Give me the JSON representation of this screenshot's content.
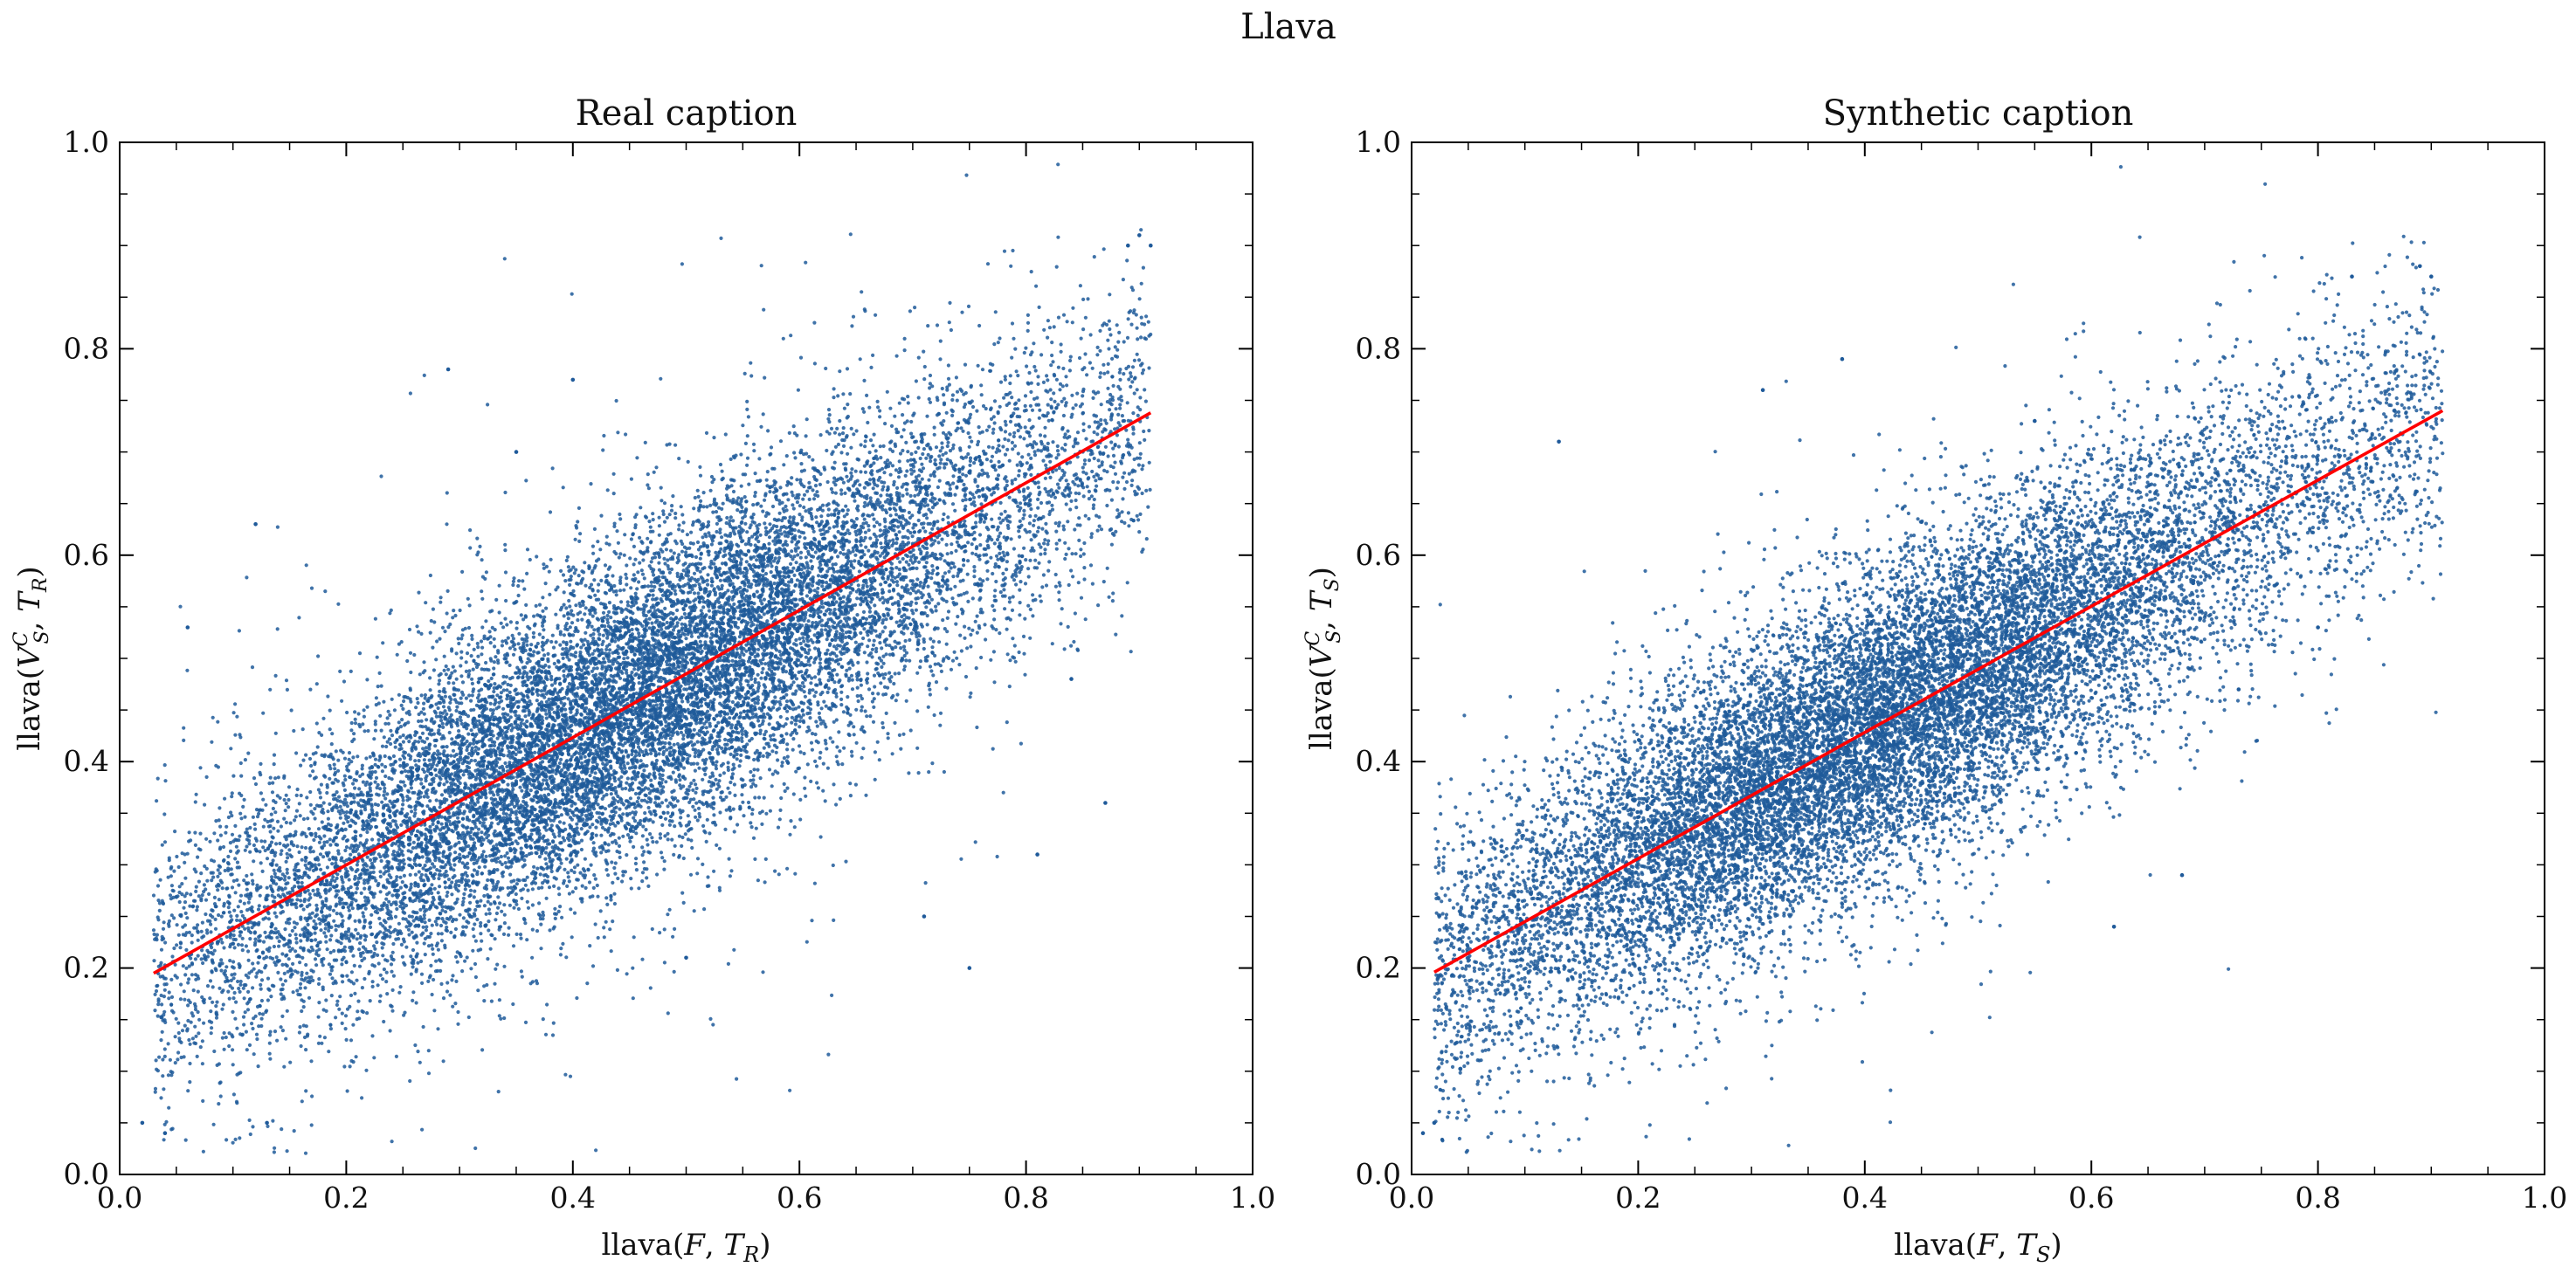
{
  "figure": {
    "suptitle": "Llava"
  },
  "chart_data": [
    {
      "type": "scatter",
      "title": "Real caption",
      "xlabel": "llava(F, T_R)",
      "xlabel_display": {
        "base": "llava(",
        "italic": "F",
        "sep": ", ",
        "sym": "T",
        "sub": "R",
        "close": ")"
      },
      "ylabel": "llava(V_S^C, T_R)",
      "ylabel_display": {
        "base": "llava(",
        "sym": "V",
        "sub": "S",
        "sup": "C",
        "sep": ", ",
        "sym2": "T",
        "sub2": "R",
        "close": ")"
      },
      "xlim": [
        0.0,
        1.0
      ],
      "ylim": [
        0.0,
        1.0
      ],
      "xticks": [
        "0.0",
        "0.2",
        "0.4",
        "0.6",
        "0.8",
        "1.0"
      ],
      "yticks": [
        "0.0",
        "0.2",
        "0.4",
        "0.6",
        "0.8",
        "1.0"
      ],
      "grid": false,
      "legend": "none",
      "point_color": "#1f5a9a",
      "fit_color": "#ff0000",
      "fit_line": {
        "x": [
          0.03,
          0.91
        ],
        "y": [
          0.195,
          0.738
        ]
      },
      "cloud": {
        "n": 16000,
        "x_range": [
          0.03,
          0.91
        ],
        "x_peak": 0.45,
        "spread": 0.075,
        "seed": 7
      },
      "outliers": {
        "x": [
          0.29,
          0.4,
          0.12,
          0.06,
          0.89,
          0.9,
          0.91,
          0.75,
          0.71,
          0.81,
          0.87,
          0.84,
          0.13,
          0.04,
          0.02,
          0.35,
          0.5
        ],
        "y": [
          0.78,
          0.77,
          0.63,
          0.53,
          0.9,
          0.91,
          0.9,
          0.2,
          0.25,
          0.31,
          0.36,
          0.48,
          0.05,
          0.04,
          0.05,
          0.7,
          0.21
        ]
      }
    },
    {
      "type": "scatter",
      "title": "Synthetic caption",
      "xlabel": "llava(F, T_S)",
      "xlabel_display": {
        "base": "llava(",
        "italic": "F",
        "sep": ", ",
        "sym": "T",
        "sub": "S",
        "close": ")"
      },
      "ylabel": "llava(V_S^C, T_S)",
      "ylabel_display": {
        "base": "llava(",
        "sym": "V",
        "sub": "S",
        "sup": "C",
        "sep": ", ",
        "sym2": "T",
        "sub2": "S",
        "close": ")"
      },
      "xlim": [
        0.0,
        1.0
      ],
      "ylim": [
        0.0,
        1.0
      ],
      "xticks": [
        "0.0",
        "0.2",
        "0.4",
        "0.6",
        "0.8",
        "1.0"
      ],
      "yticks": [
        "0.0",
        "0.2",
        "0.4",
        "0.6",
        "0.8",
        "1.0"
      ],
      "grid": false,
      "legend": "none",
      "point_color": "#1f5a9a",
      "fit_color": "#ff0000",
      "fit_line": {
        "x": [
          0.02,
          0.91
        ],
        "y": [
          0.196,
          0.74
        ]
      },
      "cloud": {
        "n": 16000,
        "x_range": [
          0.02,
          0.91
        ],
        "x_peak": 0.4,
        "spread": 0.072,
        "seed": 19
      },
      "outliers": {
        "x": [
          0.38,
          0.31,
          0.13,
          0.89,
          0.9,
          0.83,
          0.73,
          0.62,
          0.68,
          0.01,
          0.02,
          0.8,
          0.55
        ],
        "y": [
          0.79,
          0.76,
          0.71,
          0.88,
          0.87,
          0.87,
          0.47,
          0.24,
          0.29,
          0.04,
          0.05,
          0.53,
          0.73
        ]
      }
    }
  ]
}
